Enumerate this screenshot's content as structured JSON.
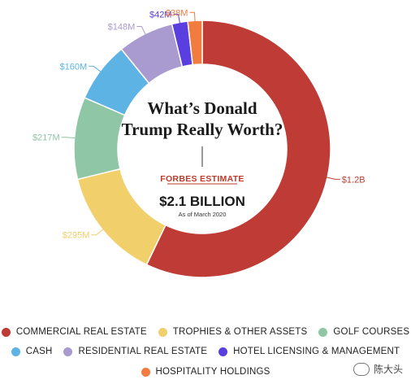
{
  "chart_data": {
    "type": "pie",
    "title": "What’s Donald Trump Really Worth?",
    "center": {
      "estimate_label": "FORBES ESTIMATE",
      "total": "$2.1 BILLION",
      "as_of": "As of March 2020"
    },
    "slices": [
      {
        "category": "COMMERCIAL REAL ESTATE",
        "value": 1200,
        "label": "$1.2B",
        "color": "#bf3b35"
      },
      {
        "category": "TROPHIES & OTHER ASSETS",
        "value": 295,
        "label": "$295M",
        "color": "#f1cf6a"
      },
      {
        "category": "GOLF COURSES",
        "value": 217,
        "label": "$217M",
        "color": "#8fc6a6"
      },
      {
        "category": "CASH",
        "value": 160,
        "label": "$160M",
        "color": "#5cb3e4"
      },
      {
        "category": "RESIDENTIAL REAL ESTATE",
        "value": 148,
        "label": "$148M",
        "color": "#a99ad0"
      },
      {
        "category": "HOTEL LICENSING & MANAGEMENT",
        "value": 42,
        "label": "$42M",
        "color": "#5a3ee0"
      },
      {
        "category": "HOSPITALITY HOLDINGS",
        "value": 38,
        "label": "$38M",
        "color": "#f27b3f"
      }
    ],
    "units": "USD millions",
    "legend_position": "bottom"
  },
  "watermark": "陈大头"
}
